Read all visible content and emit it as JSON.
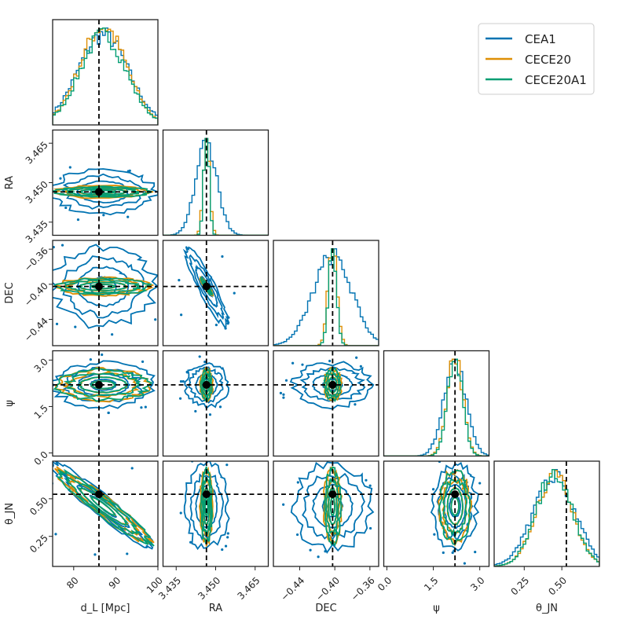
{
  "chart_data": {
    "type": "corner",
    "parameters": [
      "d_L",
      "RA",
      "DEC",
      "psi",
      "theta_JN"
    ],
    "axis_labels": [
      "d_L [Mpc]",
      "RA",
      "DEC",
      "ψ",
      "θ_JN"
    ],
    "ranges": {
      "d_L": [
        75,
        100
      ],
      "RA": [
        3.43,
        3.47
      ],
      "DEC": [
        -0.47,
        -0.35
      ],
      "psi": [
        -0.1,
        3.3
      ],
      "theta_JN": [
        0.05,
        0.75
      ]
    },
    "ticks": {
      "d_L": [
        80,
        90,
        100
      ],
      "RA": [
        3.435,
        3.45,
        3.465
      ],
      "DEC": [
        -0.44,
        -0.4,
        -0.36
      ],
      "psi": [
        0.0,
        1.5,
        3.0
      ],
      "theta_JN": [
        0.25,
        0.5
      ]
    },
    "tick_labels": {
      "d_L": [
        "80",
        "90",
        "100"
      ],
      "RA": [
        "3.435",
        "3.450",
        "3.465"
      ],
      "DEC": [
        "−0.44",
        "−0.40",
        "−0.36"
      ],
      "psi": [
        "0.0",
        "1.5",
        "3.0"
      ],
      "theta_JN": [
        "0.25",
        "0.50"
      ]
    },
    "truths": {
      "d_L": 86,
      "RA": 3.4465,
      "DEC": -0.4025,
      "psi": 2.2,
      "theta_JN": 0.53
    },
    "posteriors": {
      "CEA1": {
        "mean": {
          "d_L": 87,
          "RA": 3.4465,
          "DEC": -0.4025,
          "psi": 2.2,
          "theta_JN": 0.45
        },
        "sigma": {
          "d_L": 6.0,
          "RA": 0.004,
          "DEC": 0.022,
          "psi": 0.35,
          "theta_JN": 0.14
        }
      },
      "CECE20": {
        "mean": {
          "d_L": 87,
          "RA": 3.4465,
          "DEC": -0.4025,
          "psi": 2.2,
          "theta_JN": 0.45
        },
        "sigma": {
          "d_L": 5.5,
          "RA": 0.0012,
          "DEC": 0.005,
          "psi": 0.25,
          "theta_JN": 0.12
        }
      },
      "CECE20A1": {
        "mean": {
          "d_L": 87,
          "RA": 3.4465,
          "DEC": -0.4025,
          "psi": 2.2,
          "theta_JN": 0.45
        },
        "sigma": {
          "d_L": 5.5,
          "RA": 0.001,
          "DEC": 0.0045,
          "psi": 0.24,
          "theta_JN": 0.12
        }
      }
    },
    "correlations": {
      "RA-DEC": -0.9,
      "d_L-theta_JN": -0.95
    },
    "legend": {
      "position": "top-right",
      "entries": [
        "CEA1",
        "CECE20",
        "CECE20A1"
      ]
    }
  },
  "colors": {
    "CEA1": "#0173b2",
    "CECE20": "#de8f05",
    "CECE20A1": "#029e73",
    "truth": "#000000"
  }
}
